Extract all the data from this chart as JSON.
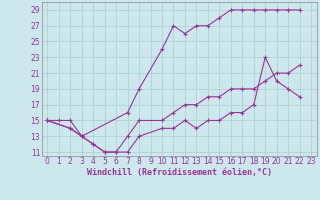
{
  "xlabel": "Windchill (Refroidissement éolien,°C)",
  "bg_color": "#cce8ec",
  "grid_color": "#aacccc",
  "line_color": "#993399",
  "xlim": [
    -0.5,
    23.5
  ],
  "ylim": [
    10.5,
    30.0
  ],
  "yticks": [
    11,
    13,
    15,
    17,
    19,
    21,
    23,
    25,
    27,
    29
  ],
  "xticks": [
    0,
    1,
    2,
    3,
    4,
    5,
    6,
    7,
    8,
    9,
    10,
    11,
    12,
    13,
    14,
    15,
    16,
    17,
    18,
    19,
    20,
    21,
    22,
    23
  ],
  "curve1_x": [
    0,
    1,
    2,
    3,
    7,
    8,
    10,
    11,
    12,
    13,
    14,
    15,
    16,
    17,
    18,
    19,
    20,
    21,
    22
  ],
  "curve1_y": [
    15,
    15,
    15,
    13,
    16,
    19,
    24,
    27,
    26,
    27,
    27,
    28,
    29,
    29,
    29,
    29,
    29,
    29,
    29
  ],
  "curve2_x": [
    0,
    2,
    3,
    4,
    5,
    6,
    7,
    8,
    10,
    11,
    12,
    13,
    14,
    15,
    16,
    17,
    18,
    19,
    20,
    21,
    22
  ],
  "curve2_y": [
    15,
    14,
    13,
    12,
    11,
    11,
    11,
    13,
    14,
    14,
    15,
    14,
    15,
    15,
    16,
    16,
    17,
    23,
    20,
    19,
    18
  ],
  "curve3_x": [
    0,
    2,
    3,
    4,
    5,
    6,
    7,
    8,
    10,
    11,
    12,
    13,
    14,
    15,
    16,
    17,
    18,
    19,
    20,
    21,
    22
  ],
  "curve3_y": [
    15,
    14,
    13,
    12,
    11,
    11,
    13,
    15,
    15,
    16,
    17,
    17,
    18,
    18,
    19,
    19,
    19,
    20,
    21,
    21,
    22
  ],
  "tick_fontsize": 5.5,
  "xlabel_fontsize": 6.0,
  "tick_color": "#993399",
  "spine_color": "#888888"
}
